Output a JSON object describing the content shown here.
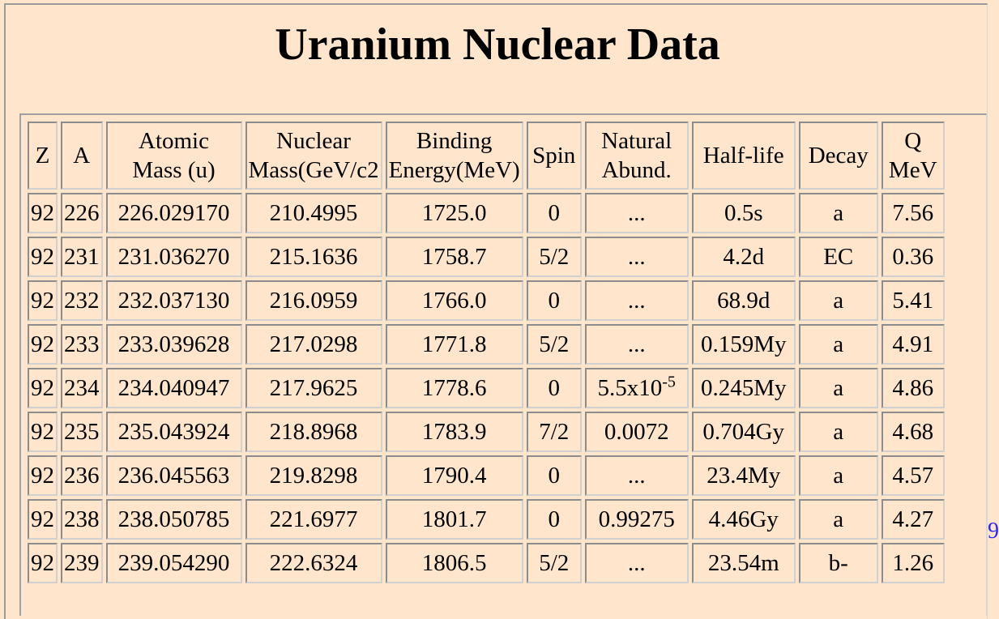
{
  "title": "Uranium Nuclear Data",
  "columns": [
    {
      "line1": "Z",
      "line2": ""
    },
    {
      "line1": "A",
      "line2": ""
    },
    {
      "line1": "Atomic",
      "line2": "Mass (u)"
    },
    {
      "line1": "Nuclear",
      "line2": "Mass(GeV/c2"
    },
    {
      "line1": "Binding",
      "line2": "Energy(MeV)"
    },
    {
      "line1": "Spin",
      "line2": ""
    },
    {
      "line1": "Natural",
      "line2": "Abund."
    },
    {
      "line1": "Half-life",
      "line2": ""
    },
    {
      "line1": "Decay",
      "line2": ""
    },
    {
      "line1": "Q",
      "line2": "MeV"
    }
  ],
  "rows": [
    {
      "z": "92",
      "a": "226",
      "atomic_mass": "226.029170",
      "nuclear_mass": "210.4995",
      "binding": "1725.0",
      "spin": "0",
      "abund": "...",
      "abund_sup": "",
      "half_life": "0.5s",
      "decay": "a",
      "q": "7.56"
    },
    {
      "z": "92",
      "a": "231",
      "atomic_mass": "231.036270",
      "nuclear_mass": "215.1636",
      "binding": "1758.7",
      "spin": "5/2",
      "abund": "...",
      "abund_sup": "",
      "half_life": "4.2d",
      "decay": "EC",
      "q": "0.36"
    },
    {
      "z": "92",
      "a": "232",
      "atomic_mass": "232.037130",
      "nuclear_mass": "216.0959",
      "binding": "1766.0",
      "spin": "0",
      "abund": "...",
      "abund_sup": "",
      "half_life": "68.9d",
      "decay": "a",
      "q": "5.41"
    },
    {
      "z": "92",
      "a": "233",
      "atomic_mass": "233.039628",
      "nuclear_mass": "217.0298",
      "binding": "1771.8",
      "spin": "5/2",
      "abund": "...",
      "abund_sup": "",
      "half_life": "0.159My",
      "decay": "a",
      "q": "4.91"
    },
    {
      "z": "92",
      "a": "234",
      "atomic_mass": "234.040947",
      "nuclear_mass": "217.9625",
      "binding": "1778.6",
      "spin": "0",
      "abund": "5.5x10",
      "abund_sup": "-5",
      "half_life": "0.245My",
      "decay": "a",
      "q": "4.86"
    },
    {
      "z": "92",
      "a": "235",
      "atomic_mass": "235.043924",
      "nuclear_mass": "218.8968",
      "binding": "1783.9",
      "spin": "7/2",
      "abund": "0.0072",
      "abund_sup": "",
      "half_life": "0.704Gy",
      "decay": "a",
      "q": "4.68"
    },
    {
      "z": "92",
      "a": "236",
      "atomic_mass": "236.045563",
      "nuclear_mass": "219.8298",
      "binding": "1790.4",
      "spin": "0",
      "abund": "...",
      "abund_sup": "",
      "half_life": "23.4My",
      "decay": "a",
      "q": "4.57"
    },
    {
      "z": "92",
      "a": "238",
      "atomic_mass": "238.050785",
      "nuclear_mass": "221.6977",
      "binding": "1801.7",
      "spin": "0",
      "abund": "0.99275",
      "abund_sup": "",
      "half_life": "4.46Gy",
      "decay": "a",
      "q": "4.27"
    },
    {
      "z": "92",
      "a": "239",
      "atomic_mass": "239.054290",
      "nuclear_mass": "222.6324",
      "binding": "1806.5",
      "spin": "5/2",
      "abund": "...",
      "abund_sup": "",
      "half_life": "23.54m",
      "decay": "b-",
      "q": "1.26"
    }
  ],
  "edge_link_text": "9",
  "colors": {
    "background": "#ffe5cc",
    "link": "#2a2aee"
  }
}
